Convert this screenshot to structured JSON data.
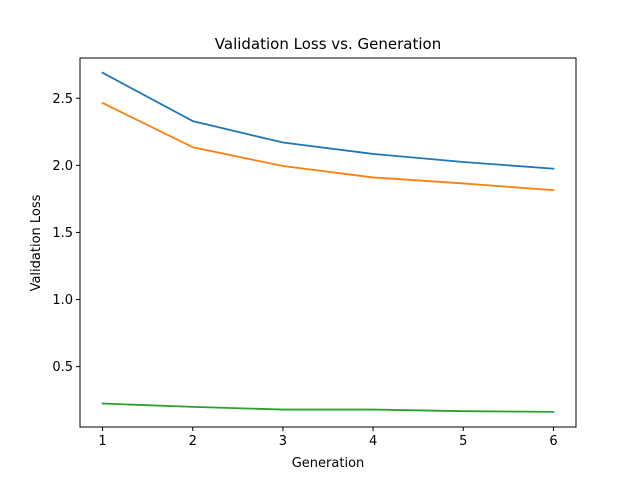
{
  "chart_data": {
    "type": "line",
    "title": "Validation Loss vs. Generation",
    "xlabel": "Generation",
    "ylabel": "Validation Loss",
    "x": [
      1,
      2,
      3,
      4,
      5,
      6
    ],
    "xticks": [
      "1",
      "2",
      "3",
      "4",
      "5",
      "6"
    ],
    "yticks": [
      "0.5",
      "1.0",
      "1.5",
      "2.0",
      "2.5"
    ],
    "xlim": [
      0.75,
      6.25
    ],
    "ylim": [
      0.05,
      2.8
    ],
    "grid": false,
    "legend": "none",
    "series": [
      {
        "values": [
          2.69,
          2.33,
          2.17,
          2.085,
          2.025,
          1.975
        ],
        "color": "#1f77b4"
      },
      {
        "values": [
          2.465,
          2.135,
          1.995,
          1.91,
          1.865,
          1.815
        ],
        "color": "#ff7f0e"
      },
      {
        "values": [
          0.225,
          0.2,
          0.18,
          0.18,
          0.168,
          0.163
        ],
        "color": "#2ca02c"
      }
    ]
  }
}
